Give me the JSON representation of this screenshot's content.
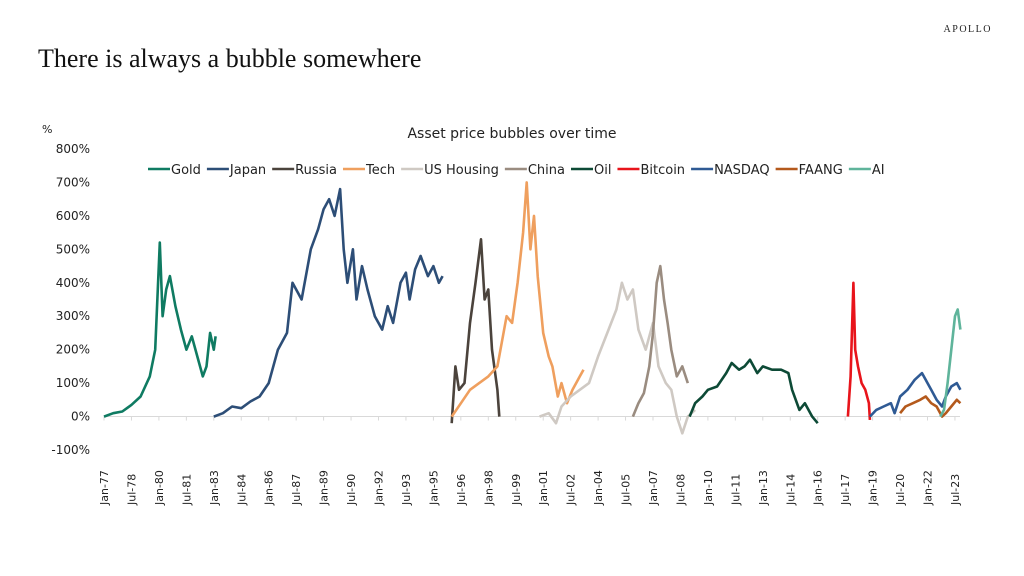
{
  "brand": "APOLLO",
  "slide_title": "There is always a bubble somewhere",
  "chart_data": {
    "type": "line",
    "title": "Asset price bubbles over time",
    "ylabel": "%",
    "ylim": [
      -100,
      800
    ],
    "yticks": [
      -100,
      0,
      100,
      200,
      300,
      400,
      500,
      600,
      700,
      800
    ],
    "ytick_labels": [
      "-100%",
      "0%",
      "100%",
      "200%",
      "300%",
      "400%",
      "500%",
      "600%",
      "700%",
      "800%"
    ],
    "xlim": [
      1977.0,
      2023.9
    ],
    "xtick_labels": [
      "Jan-77",
      "Jul-78",
      "Jan-80",
      "Jul-81",
      "Jan-83",
      "Jul-84",
      "Jan-86",
      "Jul-87",
      "Jan-89",
      "Jul-90",
      "Jan-92",
      "Jul-93",
      "Jan-95",
      "Jul-96",
      "Jan-98",
      "Jul-99",
      "Jan-01",
      "Jul-02",
      "Jan-04",
      "Jul-05",
      "Jan-07",
      "Jul-08",
      "Jan-10",
      "Jul-11",
      "Jan-13",
      "Jul-14",
      "Jan-16",
      "Jul-17",
      "Jan-19",
      "Jul-20",
      "Jan-22",
      "Jul-23"
    ],
    "legend": "top",
    "grid": false,
    "series": [
      {
        "name": "Gold",
        "color": "#0f7b62",
        "x": [
          1977,
          1977.5,
          1978,
          1978.5,
          1979,
          1979.5,
          1979.8,
          1980.05,
          1980.2,
          1980.4,
          1980.6,
          1980.9,
          1981.2,
          1981.5,
          1981.8,
          1982.1,
          1982.4,
          1982.6,
          1982.8,
          1983.0,
          1983.1
        ],
        "y": [
          0,
          10,
          15,
          35,
          60,
          120,
          200,
          520,
          300,
          380,
          420,
          330,
          260,
          200,
          240,
          180,
          120,
          150,
          250,
          200,
          240
        ]
      },
      {
        "name": "Japan",
        "color": "#2d4e77",
        "x": [
          1983,
          1983.5,
          1984,
          1984.5,
          1985,
          1985.5,
          1986,
          1986.5,
          1987,
          1987.3,
          1987.8,
          1988.3,
          1988.7,
          1989,
          1989.3,
          1989.6,
          1989.9,
          1990.1,
          1990.3,
          1990.6,
          1990.8,
          1991.1,
          1991.4,
          1991.8,
          1992.2,
          1992.5,
          1992.8,
          1993.2,
          1993.5,
          1993.7,
          1994.0,
          1994.3,
          1994.7,
          1995.0,
          1995.3,
          1995.5
        ],
        "y": [
          0,
          10,
          30,
          25,
          45,
          60,
          100,
          200,
          250,
          400,
          350,
          500,
          560,
          620,
          650,
          600,
          680,
          500,
          400,
          500,
          350,
          450,
          380,
          300,
          260,
          330,
          280,
          400,
          430,
          350,
          440,
          480,
          420,
          450,
          400,
          420
        ]
      },
      {
        "name": "Russia",
        "color": "#4b433c",
        "x": [
          1996,
          1996.2,
          1996.4,
          1996.7,
          1997,
          1997.3,
          1997.6,
          1997.8,
          1998,
          1998.2,
          1998.5,
          1998.6
        ],
        "y": [
          -20,
          150,
          80,
          100,
          280,
          400,
          530,
          350,
          380,
          200,
          80,
          0
        ]
      },
      {
        "name": "Tech",
        "color": "#ef9f5e",
        "x": [
          1996,
          1996.5,
          1997,
          1997.5,
          1998,
          1998.5,
          1999,
          1999.3,
          1999.6,
          1999.9,
          2000.1,
          2000.3,
          2000.5,
          2000.7,
          2001,
          2001.3,
          2001.5,
          2001.8,
          2002.0,
          2002.3,
          2002.6,
          2003.0,
          2003.2
        ],
        "y": [
          0,
          40,
          80,
          100,
          120,
          150,
          300,
          280,
          400,
          550,
          700,
          500,
          600,
          420,
          250,
          180,
          150,
          60,
          100,
          40,
          80,
          120,
          140
        ]
      },
      {
        "name": "US Housing",
        "color": "#cfc9c3",
        "x": [
          2000.8,
          2001.3,
          2001.7,
          2002,
          2002.5,
          2003,
          2003.5,
          2004,
          2004.5,
          2005,
          2005.3,
          2005.6,
          2005.9,
          2006.2,
          2006.6,
          2007,
          2007.3,
          2007.7,
          2008,
          2008.3,
          2008.6,
          2008.9,
          2009.3
        ],
        "y": [
          0,
          10,
          -20,
          30,
          60,
          80,
          100,
          180,
          250,
          320,
          400,
          350,
          380,
          260,
          200,
          280,
          150,
          100,
          80,
          0,
          -50,
          0,
          20
        ]
      },
      {
        "name": "China",
        "color": "#9a8c80",
        "x": [
          2005.9,
          2006.2,
          2006.5,
          2006.8,
          2007.0,
          2007.2,
          2007.4,
          2007.6,
          2007.8,
          2008.0,
          2008.3,
          2008.6,
          2008.9
        ],
        "y": [
          0,
          40,
          70,
          150,
          250,
          400,
          450,
          350,
          280,
          200,
          120,
          150,
          100
        ]
      },
      {
        "name": "Oil",
        "color": "#0d4a36",
        "x": [
          2009,
          2009.3,
          2009.7,
          2010,
          2010.5,
          2011,
          2011.3,
          2011.7,
          2012,
          2012.3,
          2012.7,
          2013,
          2013.5,
          2014,
          2014.4,
          2014.6,
          2015,
          2015.3,
          2015.7,
          2016
        ],
        "y": [
          0,
          40,
          60,
          80,
          90,
          130,
          160,
          140,
          150,
          170,
          130,
          150,
          140,
          140,
          130,
          80,
          20,
          40,
          0,
          -20
        ]
      },
      {
        "name": "Bitcoin",
        "color": "#e8141b",
        "x": [
          2017.65,
          2017.8,
          2017.95,
          2018.05,
          2018.2,
          2018.4,
          2018.6,
          2018.8,
          2018.85
        ],
        "y": [
          0,
          120,
          400,
          200,
          150,
          100,
          80,
          40,
          -10
        ]
      },
      {
        "name": "NASDAQ",
        "color": "#2f5a94",
        "x": [
          2018.85,
          2019.2,
          2019.6,
          2020,
          2020.2,
          2020.5,
          2020.9,
          2021.3,
          2021.7,
          2021.9,
          2022.2,
          2022.5,
          2022.8,
          2023,
          2023.3,
          2023.6,
          2023.8
        ],
        "y": [
          0,
          20,
          30,
          40,
          10,
          60,
          80,
          110,
          130,
          110,
          80,
          50,
          30,
          60,
          90,
          100,
          80
        ]
      },
      {
        "name": "FAANG",
        "color": "#b4591c",
        "x": [
          2020.5,
          2020.8,
          2021.2,
          2021.6,
          2021.9,
          2022.2,
          2022.5,
          2022.8,
          2023,
          2023.3,
          2023.6,
          2023.8
        ],
        "y": [
          10,
          30,
          40,
          50,
          60,
          40,
          30,
          0,
          10,
          30,
          50,
          40
        ]
      },
      {
        "name": "AI",
        "color": "#5fb49b",
        "x": [
          2022.7,
          2022.9,
          2023.1,
          2023.3,
          2023.5,
          2023.65,
          2023.8
        ],
        "y": [
          0,
          20,
          100,
          200,
          300,
          320,
          260
        ]
      }
    ]
  }
}
